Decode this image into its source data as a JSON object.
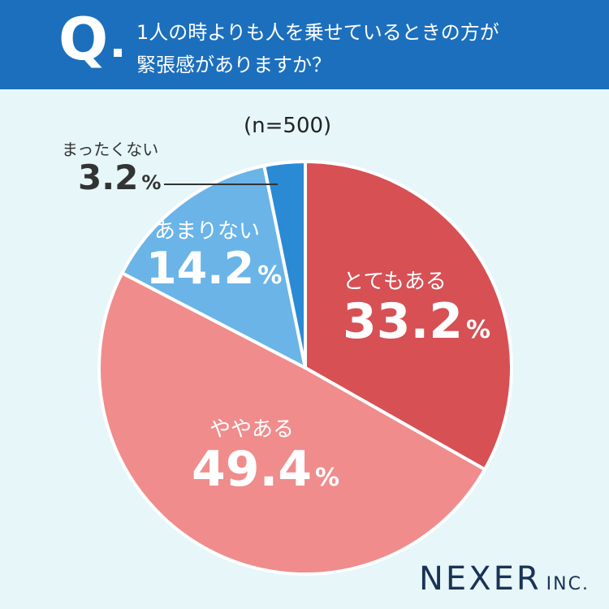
{
  "header": {
    "q_mark": "Q",
    "question_line1": "1人の時よりも人を乗せているときの方が",
    "question_line2": "緊張感がありますか？"
  },
  "sample_size": "(n=500)",
  "brand": {
    "name": "NEXER",
    "suffix": "INC."
  },
  "colors": {
    "header_bg": "#1c6fbd",
    "background": "#e6f6f9",
    "slice_totemo": "#d65054",
    "slice_yaya": "#f08c8c",
    "slice_amari": "#6ab4e8",
    "slice_mattaku": "#2a8ad4"
  },
  "chart_data": {
    "type": "pie",
    "title": "1人の時よりも人を乗せているときの方が緊張感がありますか？",
    "slices": [
      {
        "label": "とてもある",
        "value": 33.2,
        "display": "33.2",
        "color": "#d65054"
      },
      {
        "label": "ややある",
        "value": 49.4,
        "display": "49.4",
        "color": "#f08c8c"
      },
      {
        "label": "あまりない",
        "value": 14.2,
        "display": "14.2",
        "color": "#6ab4e8"
      },
      {
        "label": "まったくない",
        "value": 3.2,
        "display": "3.2",
        "color": "#2a8ad4"
      }
    ],
    "unit": "%",
    "start": "12 o'clock, clockwise"
  }
}
